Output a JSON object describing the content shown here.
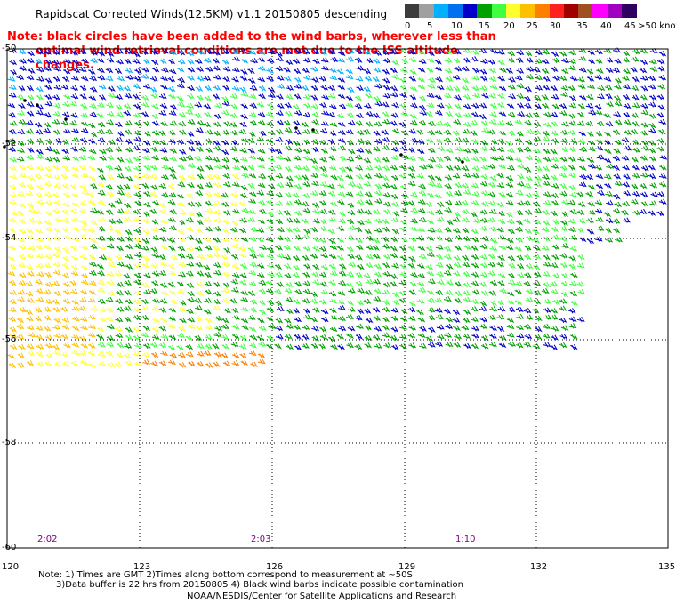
{
  "header": {
    "title": "Rapidscat Corrected Winds(12.5KM) v1.1 20150805 descending",
    "note_line1": "Note: black circles have been added to the wind barbs, wherever less than",
    "note_line2": "optimal wind retrieval conditions are met due to the ISS altitude changes."
  },
  "legend": {
    "labels": [
      "0",
      "5",
      "10",
      "15",
      "20",
      "25",
      "30",
      "35",
      "40",
      "45",
      ">50 knots"
    ],
    "colors": [
      "#3c3c3c",
      "#a0a0a0",
      "#00b0ff",
      "#0070f0",
      "#0000c8",
      "#00a000",
      "#40ff40",
      "#ffff30",
      "#ffc000",
      "#ff8000",
      "#ff2020",
      "#a00000",
      "#a05020",
      "#ff00ff",
      "#a000c0",
      "#300060"
    ]
  },
  "map": {
    "lon_labels": [
      "120",
      "123",
      "126",
      "129",
      "132",
      "135"
    ],
    "lat_labels": [
      "-50",
      "-52",
      "-54",
      "-56",
      "-58",
      "-60"
    ],
    "time_labels": [
      "2:02",
      "2:03",
      "1:10"
    ]
  },
  "footer": {
    "line1": "Note: 1) Times are GMT 2)Times along bottom correspond to measurement at ~50S",
    "line2": "3)Data buffer is 22 hrs from 20150805 4) Black wind barbs indicate possible contamination",
    "line3": "NOAA/NESDIS/Center for Satellite Applications and Research"
  }
}
